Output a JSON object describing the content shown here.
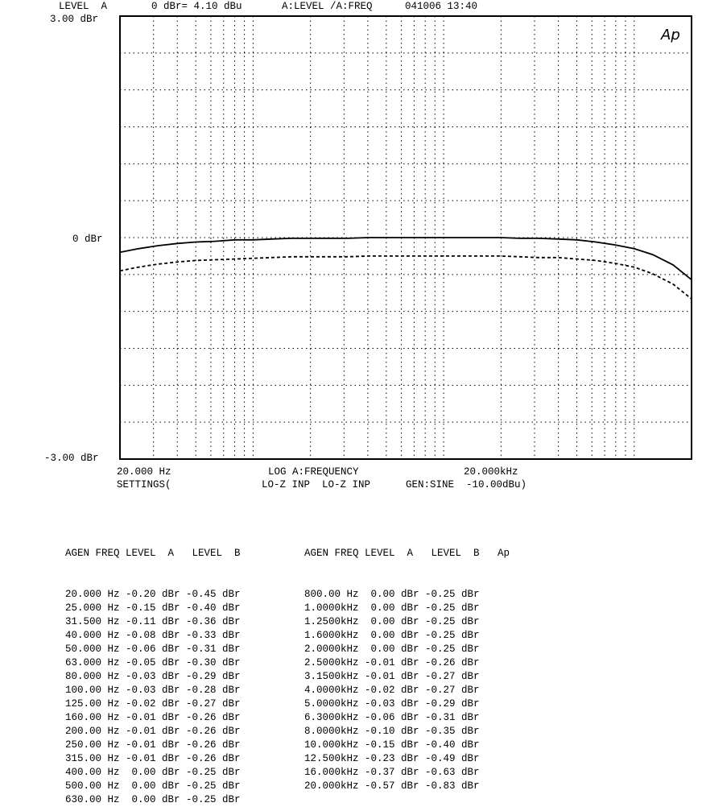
{
  "header": {
    "left": "LEVEL  A",
    "ref": "0 dBr= 4.10 dBu",
    "sweep": "A:LEVEL /A:FREQ",
    "stamp": "041006 13:40"
  },
  "logo": "Ap",
  "chart_data": {
    "type": "line",
    "xscale": "log",
    "xlim": [
      20,
      20000
    ],
    "ylim": [
      -3.0,
      3.0
    ],
    "grid": true,
    "ytick_labels": [
      "3.00 dBr",
      "0 dBr",
      "-3.00 dBr"
    ],
    "xtick_labels": {
      "start": "20.000 Hz",
      "mid": "LOG A:FREQUENCY",
      "end": "20.000kHz"
    },
    "settings_line": {
      "label": "SETTINGS(",
      "inputs": "LO-Z INP  LO-Z INP",
      "gen": "GEN:SINE  -10.00dBu)"
    },
    "x": [
      20,
      25,
      31.5,
      40,
      50,
      63,
      80,
      100,
      125,
      160,
      200,
      250,
      315,
      400,
      500,
      630,
      800,
      1000,
      1250,
      1600,
      2000,
      2500,
      3150,
      4000,
      5000,
      6300,
      8000,
      10000,
      12500,
      16000,
      20000
    ],
    "series": [
      {
        "values": [
          -0.2,
          -0.15,
          -0.11,
          -0.08,
          -0.06,
          -0.05,
          -0.03,
          -0.03,
          -0.02,
          -0.01,
          -0.01,
          -0.01,
          -0.01,
          0.0,
          0.0,
          0.0,
          0.0,
          0.0,
          0.0,
          0.0,
          0.0,
          -0.01,
          -0.01,
          -0.02,
          -0.03,
          -0.06,
          -0.1,
          -0.15,
          -0.23,
          -0.37,
          -0.57
        ],
        "style": "solid"
      },
      {
        "values": [
          -0.45,
          -0.4,
          -0.36,
          -0.33,
          -0.31,
          -0.3,
          -0.29,
          -0.28,
          -0.27,
          -0.26,
          -0.26,
          -0.26,
          -0.26,
          -0.25,
          -0.25,
          -0.25,
          -0.25,
          -0.25,
          -0.25,
          -0.25,
          -0.25,
          -0.26,
          -0.27,
          -0.27,
          -0.29,
          -0.31,
          -0.35,
          -0.4,
          -0.49,
          -0.63,
          -0.83
        ],
        "style": "dashed"
      }
    ]
  },
  "table": {
    "header_left": "AGEN FREQ LEVEL  A   LEVEL  B",
    "header_right": "AGEN FREQ LEVEL  A   LEVEL  B   Ap",
    "left_rows": [
      "20.000 Hz -0.20 dBr -0.45 dBr",
      "25.000 Hz -0.15 dBr -0.40 dBr",
      "31.500 Hz -0.11 dBr -0.36 dBr",
      "40.000 Hz -0.08 dBr -0.33 dBr",
      "50.000 Hz -0.06 dBr -0.31 dBr",
      "63.000 Hz -0.05 dBr -0.30 dBr",
      "80.000 Hz -0.03 dBr -0.29 dBr",
      "100.00 Hz -0.03 dBr -0.28 dBr",
      "125.00 Hz -0.02 dBr -0.27 dBr",
      "160.00 Hz -0.01 dBr -0.26 dBr",
      "200.00 Hz -0.01 dBr -0.26 dBr",
      "250.00 Hz -0.01 dBr -0.26 dBr",
      "315.00 Hz -0.01 dBr -0.26 dBr",
      "400.00 Hz  0.00 dBr -0.25 dBr",
      "500.00 Hz  0.00 dBr -0.25 dBr",
      "630.00 Hz  0.00 dBr -0.25 dBr"
    ],
    "right_rows": [
      "800.00 Hz  0.00 dBr -0.25 dBr",
      "1.0000kHz  0.00 dBr -0.25 dBr",
      "1.2500kHz  0.00 dBr -0.25 dBr",
      "1.6000kHz  0.00 dBr -0.25 dBr",
      "2.0000kHz  0.00 dBr -0.25 dBr",
      "2.5000kHz -0.01 dBr -0.26 dBr",
      "3.1500kHz -0.01 dBr -0.27 dBr",
      "4.0000kHz -0.02 dBr -0.27 dBr",
      "5.0000kHz -0.03 dBr -0.29 dBr",
      "6.3000kHz -0.06 dBr -0.31 dBr",
      "8.0000kHz -0.10 dBr -0.35 dBr",
      "10.000kHz -0.15 dBr -0.40 dBr",
      "12.500kHz -0.23 dBr -0.49 dBr",
      "16.000kHz -0.37 dBr -0.63 dBr",
      "20.000kHz -0.57 dBr -0.83 dBr"
    ]
  }
}
